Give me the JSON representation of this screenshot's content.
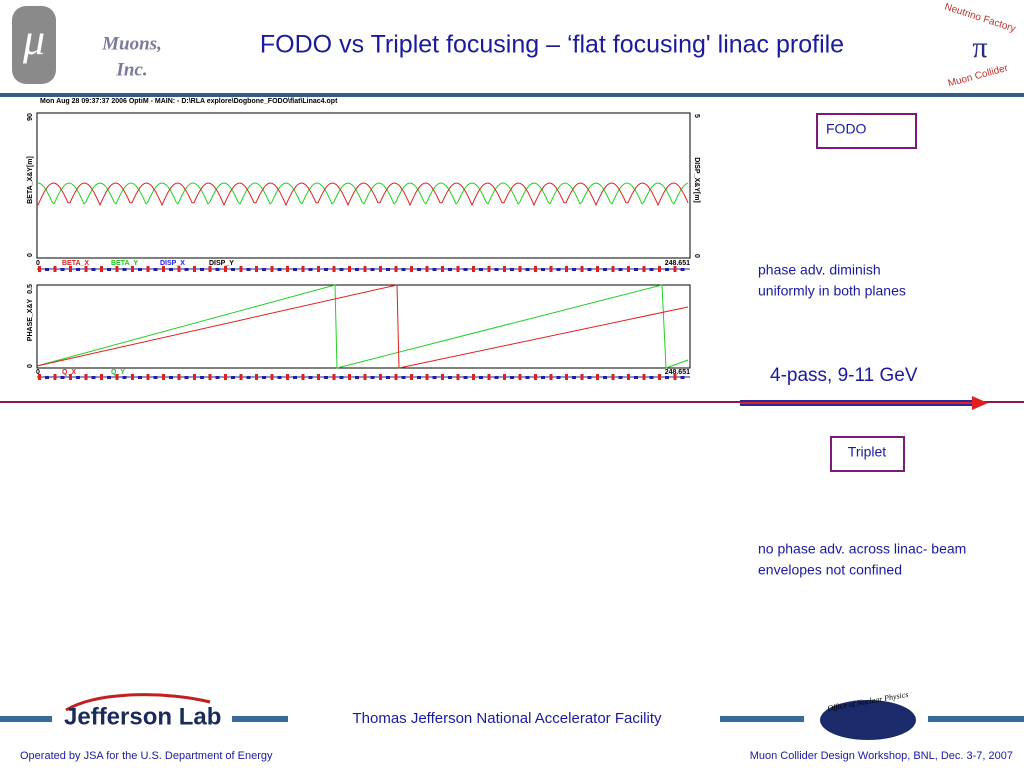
{
  "header": {
    "mu": "μ",
    "logo_lines": [
      "Muons,",
      "Inc."
    ],
    "title": "FODO vs Triplet focusing – ‘flat focusing' linac profile",
    "badge_top": "Neutrino Factory",
    "badge_bottom": "Muon Collider"
  },
  "plot": {
    "header": "Mon Aug 28 09:37:37 2006    OptiM - MAIN: - D:\\RLA explore\\Dogbone_FODO\\flat\\Linac4.opt",
    "top": {
      "y_label": "BETA_X&Y[m]",
      "y2_label": "DISP_X&Y[m]",
      "y_max": "90",
      "y_min": "0",
      "y2_max": "5",
      "y2_min": "0",
      "x_min": "0",
      "x_max": "248.651",
      "legend": [
        "BETA_X",
        "BETA_Y",
        "DISP_X",
        "DISP_Y"
      ]
    },
    "bottom": {
      "y_label": "PHASE_X&Y",
      "y_max": "0.5",
      "y_min": "0",
      "x_min": "0",
      "x_max": "248.651",
      "legend": [
        "Q_X",
        "Q_Y"
      ]
    }
  },
  "right": {
    "fodo": "FODO",
    "fodo_note": [
      "phase adv. diminish",
      "uniformly in both planes"
    ],
    "pass": "4-pass, 9-11 GeV",
    "triplet": "Triplet",
    "triplet_note": [
      "no phase adv. across linac- beam",
      "envelopes not confined"
    ]
  },
  "footer": {
    "lab": "Jefferson Lab",
    "facility": "Thomas Jefferson National Accelerator Facility",
    "onp": "Office of Nuclear Physics",
    "left": "Operated by JSA for the U.S. Department of Energy",
    "right": "Muon Collider Design Workshop, BNL, Dec. 3-7, 2007"
  }
}
